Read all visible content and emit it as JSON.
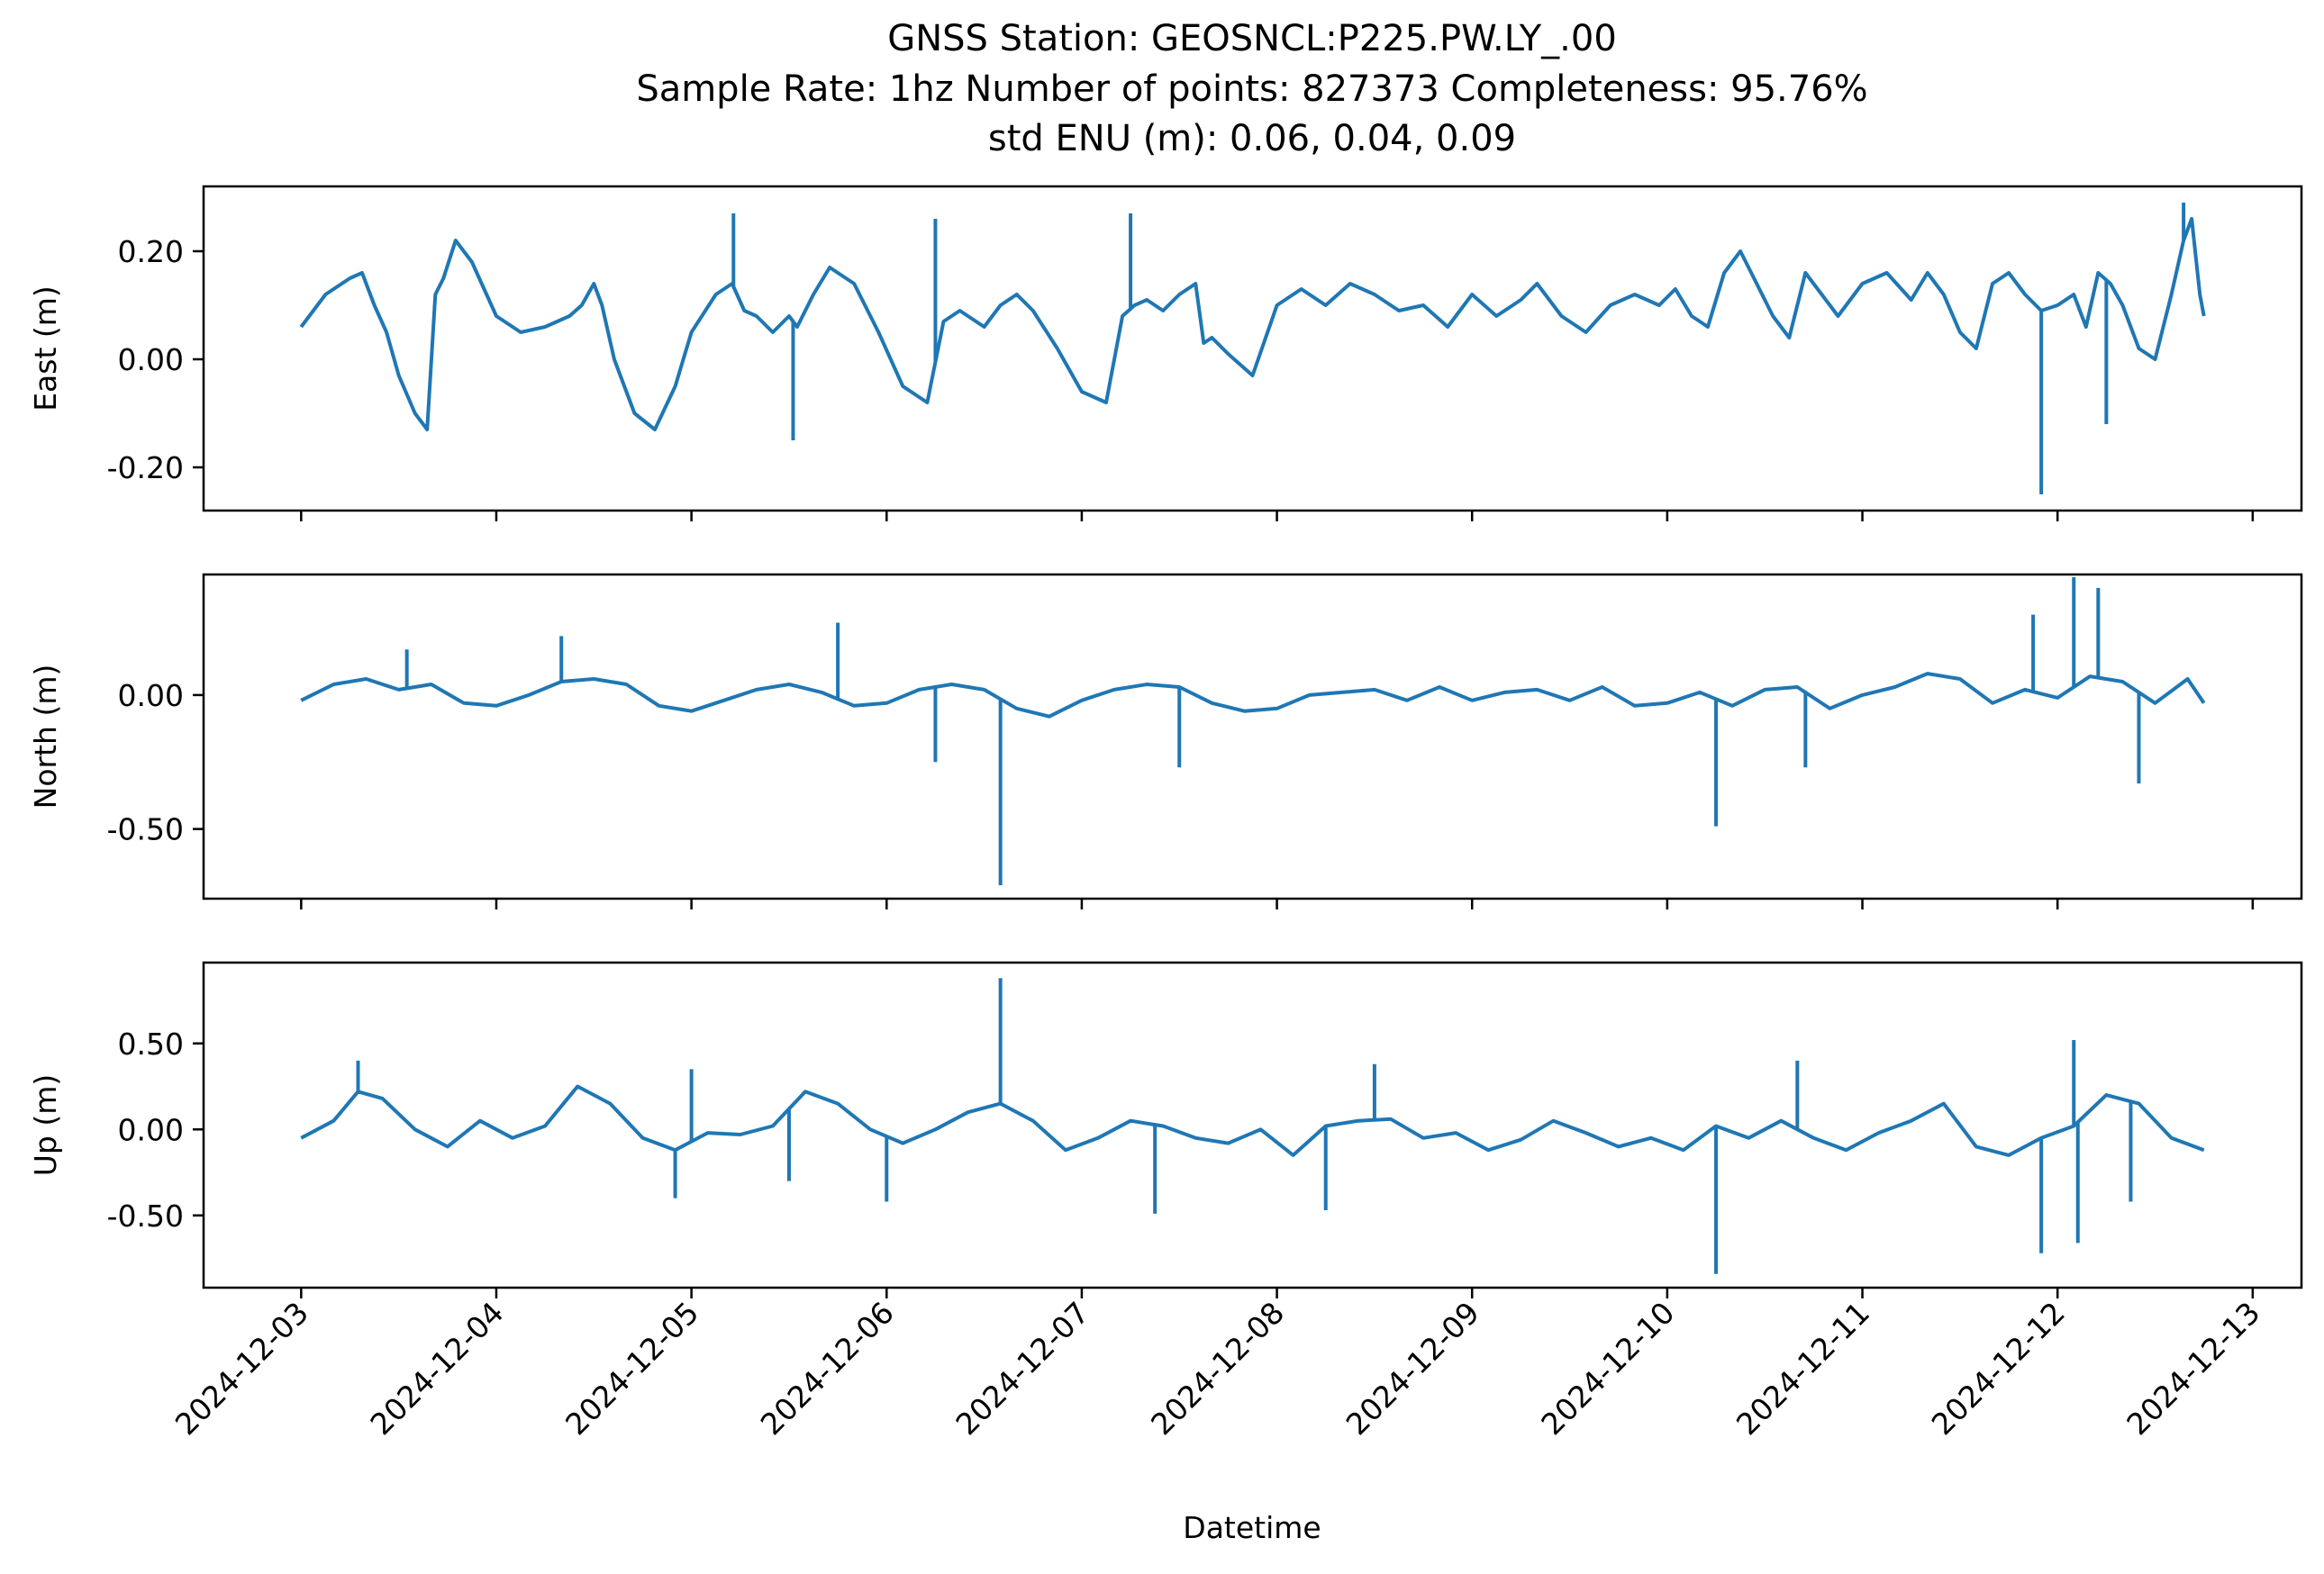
{
  "chart_data": [
    {
      "type": "line",
      "title": [
        "GNSS Station: GEOSNCL:P225.PW.LY_.00",
        "Sample Rate: 1hz   Number of points: 827373    Completeness:  95.76%",
        "std ENU (m):  0.06, 0.04, 0.09"
      ],
      "ylabel": "East (m)",
      "xlim": [
        "2024-12-02T12:00",
        "2024-12-13T06:00"
      ],
      "ylim": [
        -0.28,
        0.32
      ],
      "yticks": [
        "-0.20",
        "0.00",
        "0.20"
      ],
      "ytick_values": [
        -0.2,
        0.0,
        0.2
      ],
      "color": "#1f77b4",
      "series": [
        {
          "x": [
            "2024-12-03T00:00",
            "2024-12-03T03:00",
            "2024-12-03T06:00",
            "2024-12-03T07:30",
            "2024-12-03T09:00",
            "2024-12-03T10:30",
            "2024-12-03T12:00",
            "2024-12-03T14:00",
            "2024-12-03T15:30",
            "2024-12-03T16:30",
            "2024-12-03T17:30",
            "2024-12-03T19:00",
            "2024-12-03T21:00",
            "2024-12-04T00:00",
            "2024-12-04T03:00",
            "2024-12-04T06:00",
            "2024-12-04T09:00",
            "2024-12-04T10:30",
            "2024-12-04T12:00",
            "2024-12-04T13:00",
            "2024-12-04T14:30",
            "2024-12-04T17:00",
            "2024-12-04T19:30",
            "2024-12-04T22:00",
            "2024-12-05T00:00",
            "2024-12-05T03:00",
            "2024-12-05T05:00",
            "2024-12-05T06:30",
            "2024-12-05T08:00",
            "2024-12-05T10:00",
            "2024-12-05T12:00",
            "2024-12-05T13:00",
            "2024-12-05T15:00",
            "2024-12-05T17:00",
            "2024-12-05T20:00",
            "2024-12-05T23:00",
            "2024-12-06T02:00",
            "2024-12-06T05:00",
            "2024-12-06T07:00",
            "2024-12-06T09:00",
            "2024-12-06T12:00",
            "2024-12-06T14:00",
            "2024-12-06T16:00",
            "2024-12-06T18:00",
            "2024-12-06T21:00",
            "2024-12-07T00:00",
            "2024-12-07T03:00",
            "2024-12-07T05:00",
            "2024-12-07T06:30",
            "2024-12-07T08:00",
            "2024-12-07T10:00",
            "2024-12-07T12:00",
            "2024-12-07T14:00",
            "2024-12-07T15:00",
            "2024-12-07T16:00",
            "2024-12-07T18:00",
            "2024-12-07T21:00",
            "2024-12-08T00:00",
            "2024-12-08T03:00",
            "2024-12-08T06:00",
            "2024-12-08T09:00",
            "2024-12-08T12:00",
            "2024-12-08T15:00",
            "2024-12-08T18:00",
            "2024-12-08T21:00",
            "2024-12-09T00:00",
            "2024-12-09T03:00",
            "2024-12-09T06:00",
            "2024-12-09T08:00",
            "2024-12-09T11:00",
            "2024-12-09T14:00",
            "2024-12-09T17:00",
            "2024-12-09T20:00",
            "2024-12-09T23:00",
            "2024-12-10T01:00",
            "2024-12-10T03:00",
            "2024-12-10T05:00",
            "2024-12-10T07:00",
            "2024-12-10T09:00",
            "2024-12-10T11:00",
            "2024-12-10T13:00",
            "2024-12-10T15:00",
            "2024-12-10T17:00",
            "2024-12-10T19:00",
            "2024-12-10T21:00",
            "2024-12-11T00:00",
            "2024-12-11T03:00",
            "2024-12-11T06:00",
            "2024-12-11T08:00",
            "2024-12-11T10:00",
            "2024-12-11T12:00",
            "2024-12-11T14:00",
            "2024-12-11T16:00",
            "2024-12-11T18:00",
            "2024-12-11T20:00",
            "2024-12-11T22:00",
            "2024-12-12T00:00",
            "2024-12-12T02:00",
            "2024-12-12T03:30",
            "2024-12-12T05:00",
            "2024-12-12T06:30",
            "2024-12-12T08:00",
            "2024-12-12T10:00",
            "2024-12-12T12:00",
            "2024-12-12T14:00",
            "2024-12-12T15:30",
            "2024-12-12T16:30",
            "2024-12-12T17:30",
            "2024-12-12T18:00"
          ],
          "y": [
            0.06,
            0.12,
            0.15,
            0.16,
            0.1,
            0.05,
            -0.03,
            -0.1,
            -0.13,
            0.12,
            0.15,
            0.22,
            0.18,
            0.08,
            0.05,
            0.06,
            0.08,
            0.1,
            0.14,
            0.1,
            0.0,
            -0.1,
            -0.13,
            -0.05,
            0.05,
            0.12,
            0.14,
            0.09,
            0.08,
            0.05,
            0.08,
            0.06,
            0.12,
            0.17,
            0.14,
            0.05,
            -0.05,
            -0.08,
            0.07,
            0.09,
            0.06,
            0.1,
            0.12,
            0.09,
            0.02,
            -0.06,
            -0.08,
            0.08,
            0.1,
            0.11,
            0.09,
            0.12,
            0.14,
            0.03,
            0.04,
            0.01,
            -0.03,
            0.1,
            0.13,
            0.1,
            0.14,
            0.12,
            0.09,
            0.1,
            0.06,
            0.12,
            0.08,
            0.11,
            0.14,
            0.08,
            0.05,
            0.1,
            0.12,
            0.1,
            0.13,
            0.08,
            0.06,
            0.16,
            0.2,
            0.14,
            0.08,
            0.04,
            0.16,
            0.12,
            0.08,
            0.14,
            0.16,
            0.11,
            0.16,
            0.12,
            0.05,
            0.02,
            0.14,
            0.16,
            0.12,
            0.09,
            0.1,
            0.12,
            0.06,
            0.16,
            0.14,
            0.1,
            0.02,
            0.0,
            0.12,
            0.22,
            0.26,
            0.12,
            0.08
          ]
        }
      ],
      "spikes": [
        {
          "x": "2024-12-05T05:10",
          "y": 0.27
        },
        {
          "x": "2024-12-06T06:00",
          "y": 0.26
        },
        {
          "x": "2024-12-07T06:00",
          "y": 0.27
        },
        {
          "x": "2024-12-05T12:30",
          "y": -0.15
        },
        {
          "x": "2024-12-11T22:00",
          "y": -0.25
        },
        {
          "x": "2024-12-12T06:00",
          "y": -0.12
        },
        {
          "x": "2024-12-12T15:30",
          "y": 0.29
        }
      ]
    },
    {
      "type": "line",
      "ylabel": "North (m)",
      "xlim": [
        "2024-12-02T12:00",
        "2024-12-13T06:00"
      ],
      "ylim": [
        -0.76,
        0.45
      ],
      "yticks": [
        "-0.50",
        "0.00"
      ],
      "ytick_values": [
        -0.5,
        0.0
      ],
      "color": "#1f77b4",
      "series": [
        {
          "x": [
            "2024-12-03T00:00",
            "2024-12-03T04:00",
            "2024-12-03T08:00",
            "2024-12-03T12:00",
            "2024-12-03T16:00",
            "2024-12-03T20:00",
            "2024-12-04T00:00",
            "2024-12-04T04:00",
            "2024-12-04T08:00",
            "2024-12-04T12:00",
            "2024-12-04T16:00",
            "2024-12-04T20:00",
            "2024-12-05T00:00",
            "2024-12-05T04:00",
            "2024-12-05T08:00",
            "2024-12-05T12:00",
            "2024-12-05T16:00",
            "2024-12-05T20:00",
            "2024-12-06T00:00",
            "2024-12-06T04:00",
            "2024-12-06T08:00",
            "2024-12-06T12:00",
            "2024-12-06T16:00",
            "2024-12-06T20:00",
            "2024-12-07T00:00",
            "2024-12-07T04:00",
            "2024-12-07T08:00",
            "2024-12-07T12:00",
            "2024-12-07T16:00",
            "2024-12-07T20:00",
            "2024-12-08T00:00",
            "2024-12-08T04:00",
            "2024-12-08T08:00",
            "2024-12-08T12:00",
            "2024-12-08T16:00",
            "2024-12-08T20:00",
            "2024-12-09T00:00",
            "2024-12-09T04:00",
            "2024-12-09T08:00",
            "2024-12-09T12:00",
            "2024-12-09T16:00",
            "2024-12-09T20:00",
            "2024-12-10T00:00",
            "2024-12-10T04:00",
            "2024-12-10T08:00",
            "2024-12-10T12:00",
            "2024-12-10T16:00",
            "2024-12-10T20:00",
            "2024-12-11T00:00",
            "2024-12-11T04:00",
            "2024-12-11T08:00",
            "2024-12-11T12:00",
            "2024-12-11T16:00",
            "2024-12-11T20:00",
            "2024-12-12T00:00",
            "2024-12-12T04:00",
            "2024-12-12T08:00",
            "2024-12-12T12:00",
            "2024-12-12T16:00",
            "2024-12-12T18:00"
          ],
          "y": [
            -0.02,
            0.04,
            0.06,
            0.02,
            0.04,
            -0.03,
            -0.04,
            0.0,
            0.05,
            0.06,
            0.04,
            -0.04,
            -0.06,
            -0.02,
            0.02,
            0.04,
            0.01,
            -0.04,
            -0.03,
            0.02,
            0.04,
            0.02,
            -0.05,
            -0.08,
            -0.02,
            0.02,
            0.04,
            0.03,
            -0.03,
            -0.06,
            -0.05,
            0.0,
            0.01,
            0.02,
            -0.02,
            0.03,
            -0.02,
            0.01,
            0.02,
            -0.02,
            0.03,
            -0.04,
            -0.03,
            0.01,
            -0.04,
            0.02,
            0.03,
            -0.05,
            0.0,
            0.03,
            0.08,
            0.06,
            -0.03,
            0.02,
            -0.01,
            0.07,
            0.05,
            -0.03,
            0.06,
            -0.03
          ]
        }
      ],
      "spikes": [
        {
          "x": "2024-12-03T13:00",
          "y": 0.17
        },
        {
          "x": "2024-12-04T08:00",
          "y": 0.22
        },
        {
          "x": "2024-12-05T18:00",
          "y": 0.27
        },
        {
          "x": "2024-12-06T06:00",
          "y": -0.25
        },
        {
          "x": "2024-12-06T14:00",
          "y": -0.71
        },
        {
          "x": "2024-12-07T12:00",
          "y": -0.27
        },
        {
          "x": "2024-12-10T06:00",
          "y": -0.49
        },
        {
          "x": "2024-12-10T17:00",
          "y": -0.27
        },
        {
          "x": "2024-12-11T21:00",
          "y": 0.3
        },
        {
          "x": "2024-12-12T02:00",
          "y": 0.44
        },
        {
          "x": "2024-12-12T05:00",
          "y": 0.4
        },
        {
          "x": "2024-12-12T10:00",
          "y": -0.33
        }
      ]
    },
    {
      "type": "line",
      "ylabel": "Up (m)",
      "xlabel": "Datetime",
      "xlim": [
        "2024-12-02T12:00",
        "2024-12-13T06:00"
      ],
      "ylim": [
        -0.92,
        0.97
      ],
      "yticks": [
        "-0.50",
        "0.00",
        "0.50"
      ],
      "ytick_values": [
        -0.5,
        0.0,
        0.5
      ],
      "xticks": [
        "2024-12-03",
        "2024-12-04",
        "2024-12-05",
        "2024-12-06",
        "2024-12-07",
        "2024-12-08",
        "2024-12-09",
        "2024-12-10",
        "2024-12-11",
        "2024-12-12",
        "2024-12-13"
      ],
      "color": "#1f77b4",
      "series": [
        {
          "x": [
            "2024-12-03T00:00",
            "2024-12-03T04:00",
            "2024-12-03T07:00",
            "2024-12-03T10:00",
            "2024-12-03T14:00",
            "2024-12-03T18:00",
            "2024-12-03T22:00",
            "2024-12-04T02:00",
            "2024-12-04T06:00",
            "2024-12-04T10:00",
            "2024-12-04T14:00",
            "2024-12-04T18:00",
            "2024-12-04T22:00",
            "2024-12-05T02:00",
            "2024-12-05T06:00",
            "2024-12-05T10:00",
            "2024-12-05T14:00",
            "2024-12-05T18:00",
            "2024-12-05T22:00",
            "2024-12-06T02:00",
            "2024-12-06T06:00",
            "2024-12-06T10:00",
            "2024-12-06T14:00",
            "2024-12-06T18:00",
            "2024-12-06T22:00",
            "2024-12-07T02:00",
            "2024-12-07T06:00",
            "2024-12-07T10:00",
            "2024-12-07T14:00",
            "2024-12-07T18:00",
            "2024-12-07T22:00",
            "2024-12-08T02:00",
            "2024-12-08T06:00",
            "2024-12-08T10:00",
            "2024-12-08T14:00",
            "2024-12-08T18:00",
            "2024-12-08T22:00",
            "2024-12-09T02:00",
            "2024-12-09T06:00",
            "2024-12-09T10:00",
            "2024-12-09T14:00",
            "2024-12-09T18:00",
            "2024-12-09T22:00",
            "2024-12-10T02:00",
            "2024-12-10T06:00",
            "2024-12-10T10:00",
            "2024-12-10T14:00",
            "2024-12-10T18:00",
            "2024-12-10T22:00",
            "2024-12-11T02:00",
            "2024-12-11T06:00",
            "2024-12-11T10:00",
            "2024-12-11T14:00",
            "2024-12-11T18:00",
            "2024-12-11T22:00",
            "2024-12-12T02:00",
            "2024-12-12T06:00",
            "2024-12-12T10:00",
            "2024-12-12T14:00",
            "2024-12-12T18:00"
          ],
          "y": [
            -0.05,
            0.05,
            0.22,
            0.18,
            0.0,
            -0.1,
            0.05,
            -0.05,
            0.02,
            0.25,
            0.15,
            -0.05,
            -0.12,
            -0.02,
            -0.03,
            0.02,
            0.22,
            0.15,
            0.0,
            -0.08,
            0.0,
            0.1,
            0.15,
            0.05,
            -0.12,
            -0.05,
            0.05,
            0.02,
            -0.05,
            -0.08,
            0.0,
            -0.15,
            0.02,
            0.05,
            0.06,
            -0.05,
            -0.02,
            -0.12,
            -0.06,
            0.05,
            -0.02,
            -0.1,
            -0.05,
            -0.12,
            0.02,
            -0.05,
            0.05,
            -0.05,
            -0.12,
            -0.02,
            0.05,
            0.15,
            -0.1,
            -0.15,
            -0.05,
            0.02,
            0.2,
            0.15,
            -0.05,
            -0.12
          ]
        }
      ],
      "spikes": [
        {
          "x": "2024-12-03T07:00",
          "y": 0.4
        },
        {
          "x": "2024-12-04T22:00",
          "y": -0.4
        },
        {
          "x": "2024-12-05T00:00",
          "y": 0.35
        },
        {
          "x": "2024-12-05T12:00",
          "y": -0.3
        },
        {
          "x": "2024-12-06T00:00",
          "y": -0.42
        },
        {
          "x": "2024-12-06T14:00",
          "y": 0.88
        },
        {
          "x": "2024-12-07T09:00",
          "y": -0.49
        },
        {
          "x": "2024-12-08T06:00",
          "y": -0.47
        },
        {
          "x": "2024-12-08T12:00",
          "y": 0.38
        },
        {
          "x": "2024-12-10T06:00",
          "y": -0.84
        },
        {
          "x": "2024-12-10T16:00",
          "y": 0.4
        },
        {
          "x": "2024-12-11T22:00",
          "y": -0.72
        },
        {
          "x": "2024-12-12T02:00",
          "y": 0.52
        },
        {
          "x": "2024-12-12T02:30",
          "y": -0.66
        },
        {
          "x": "2024-12-12T09:00",
          "y": -0.42
        }
      ]
    }
  ]
}
